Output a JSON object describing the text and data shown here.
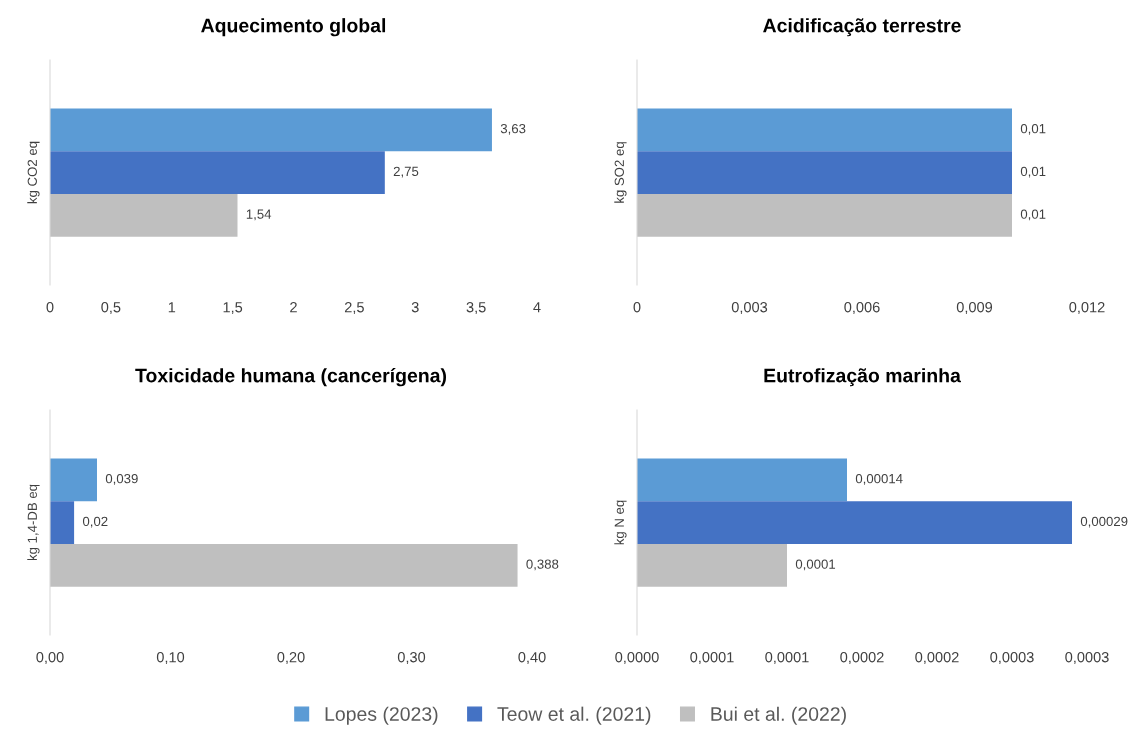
{
  "chart_data": [
    {
      "type": "bar",
      "orientation": "horizontal",
      "title": "Aquecimento global",
      "ylabel": "kg CO2 eq",
      "categories": [
        null
      ],
      "legend": "bottom",
      "series": [
        {
          "name": "Lopes (2023)",
          "color": "#5b9bd5",
          "values": [
            3.63
          ],
          "value_labels": [
            "3,63"
          ]
        },
        {
          "name": "Teow et al. (2021)",
          "color": "#4472c4",
          "values": [
            2.75
          ],
          "value_labels": [
            "2,75"
          ]
        },
        {
          "name": "Bui et al. (2022)",
          "color": "#bfbfbf",
          "values": [
            1.54
          ],
          "value_labels": [
            "1,54"
          ]
        }
      ],
      "xlim": [
        0,
        4
      ],
      "xticks": [
        0,
        {
          "value": 0.5,
          "label": "0,5"
        },
        1,
        {
          "value": 1.5,
          "label": "1,5"
        },
        2,
        {
          "value": 2.5,
          "label": "2,5"
        },
        3,
        {
          "value": 3.5,
          "label": "3,5"
        },
        4
      ],
      "grid": false
    },
    {
      "type": "bar",
      "orientation": "horizontal",
      "title": "Acidificação terrestre",
      "ylabel": "kg SO2 eq",
      "categories": [
        null
      ],
      "series": [
        {
          "color": "#5b9bd5",
          "values": [
            0.01
          ],
          "value_labels": [
            "0,01"
          ]
        },
        {
          "color": "#4472c4",
          "values": [
            0.01
          ],
          "value_labels": [
            "0,01"
          ]
        },
        {
          "color": "#bfbfbf",
          "values": [
            0.01
          ],
          "value_labels": [
            "0,01"
          ]
        }
      ],
      "xlim": [
        0,
        0.012
      ],
      "xticks": [
        0,
        {
          "value": 0.003,
          "label": "0,003"
        },
        {
          "value": 0.006,
          "label": "0,006"
        },
        {
          "value": 0.009,
          "label": "0,009"
        },
        {
          "value": 0.012,
          "label": "0,012"
        }
      ],
      "grid": false
    },
    {
      "type": "bar",
      "orientation": "horizontal",
      "title": "Toxicidade humana (cancerígena)",
      "ylabel": "kg 1,4-DB eq",
      "categories": [
        null
      ],
      "series": [
        {
          "color": "#5b9bd5",
          "values": [
            0.039
          ],
          "value_labels": [
            "0,039"
          ]
        },
        {
          "color": "#4472c4",
          "values": [
            0.02
          ],
          "value_labels": [
            "0,02"
          ]
        },
        {
          "color": "#bfbfbf",
          "values": [
            0.388
          ],
          "value_labels": [
            "0,388"
          ]
        }
      ],
      "xlim": [
        0,
        0.4
      ],
      "xticks": [
        {
          "value": 0,
          "label": "0,00"
        },
        {
          "value": 0.1,
          "label": "0,10"
        },
        {
          "value": 0.2,
          "label": "0,20"
        },
        {
          "value": 0.3,
          "label": "0,30"
        },
        {
          "value": 0.4,
          "label": "0,40"
        }
      ],
      "grid": false
    },
    {
      "type": "bar",
      "orientation": "horizontal",
      "title": "Eutrofização marinha",
      "ylabel": "kg N eq",
      "categories": [
        null
      ],
      "series": [
        {
          "color": "#5b9bd5",
          "values": [
            0.00014
          ],
          "value_labels": [
            "0,00014"
          ]
        },
        {
          "color": "#4472c4",
          "values": [
            0.00029
          ],
          "value_labels": [
            "0,00029"
          ]
        },
        {
          "color": "#bfbfbf",
          "values": [
            0.0001
          ],
          "value_labels": [
            "0,0001"
          ]
        }
      ],
      "xlim": [
        0,
        0.0003
      ],
      "xticks": [
        {
          "value": 0,
          "label": "0,0000"
        },
        {
          "value": 5e-05,
          "label": "0,0001"
        },
        {
          "value": 0.0001,
          "label": "0,0001"
        },
        {
          "value": 0.00015,
          "label": "0,0002"
        },
        {
          "value": 0.0002,
          "label": "0,0002"
        },
        {
          "value": 0.00025,
          "label": "0,0003"
        },
        {
          "value": 0.0003,
          "label": "0,0003"
        }
      ],
      "grid": false
    }
  ]
}
